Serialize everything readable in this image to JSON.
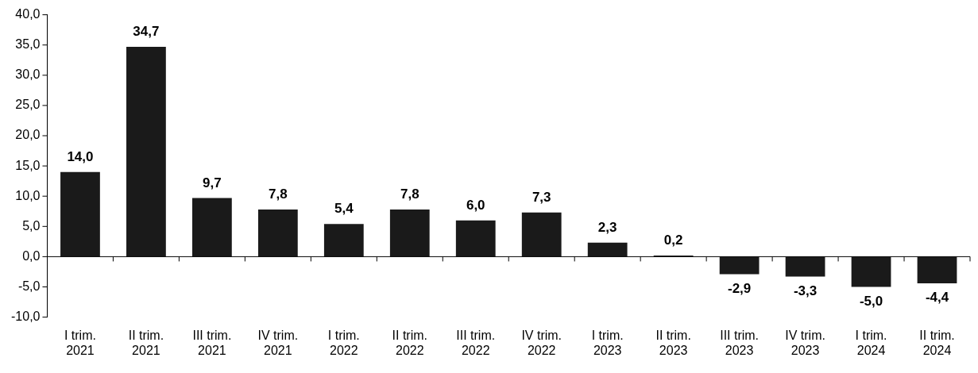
{
  "chart_data": {
    "type": "bar",
    "categories": [
      "I trim.\n2021",
      "II trim.\n2021",
      "III trim.\n2021",
      "IV trim.\n2021",
      "I trim.\n2022",
      "II trim.\n2022",
      "III trim.\n2022",
      "IV trim.\n2022",
      "I trim.\n2023",
      "II trim.\n2023",
      "III trim.\n2023",
      "IV trim.\n2023",
      "I trim.\n2024",
      "II trim.\n2024"
    ],
    "values": [
      14.0,
      34.7,
      9.7,
      7.8,
      5.4,
      7.8,
      6.0,
      7.3,
      2.3,
      0.2,
      -2.9,
      -3.3,
      -5.0,
      -4.4
    ],
    "value_labels": [
      "14,0",
      "34,7",
      "9,7",
      "7,8",
      "5,4",
      "7,8",
      "6,0",
      "7,3",
      "2,3",
      "0,2",
      "-2,9",
      "-3,3",
      "-5,0",
      "-4,4"
    ],
    "color": "#1a1a1a",
    "ylim": [
      -10,
      40
    ],
    "yticks": [
      {
        "value": -10,
        "label": "-10,0"
      },
      {
        "value": -5,
        "label": "-5,0"
      },
      {
        "value": 0,
        "label": "0,0"
      },
      {
        "value": 5,
        "label": "5,0"
      },
      {
        "value": 10,
        "label": "10,0"
      },
      {
        "value": 15,
        "label": "15,0"
      },
      {
        "value": 20,
        "label": "20,0"
      },
      {
        "value": 25,
        "label": "25,0"
      },
      {
        "value": 30,
        "label": "30,0"
      },
      {
        "value": 35,
        "label": "35,0"
      },
      {
        "value": 40,
        "label": "40,0"
      }
    ],
    "ref_lines": [
      {
        "axis": "y",
        "value": 0,
        "color": "#000000"
      }
    ],
    "grid": false,
    "legend": false
  }
}
